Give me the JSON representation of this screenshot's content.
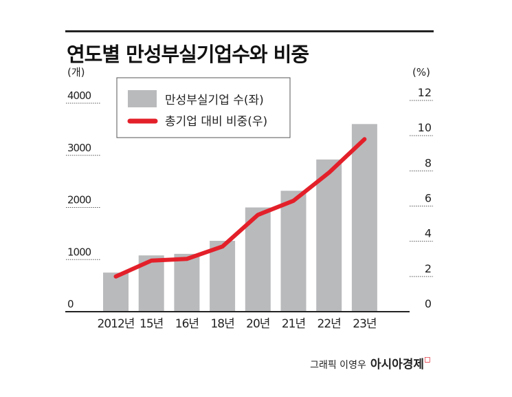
{
  "title": "연도별 만성부실기업수와 비중",
  "footer": {
    "credit": "그래픽 이영우",
    "brand": "아시아경제"
  },
  "colors": {
    "bar": "#b9babc",
    "line": "#e3202a",
    "text": "#222222"
  },
  "chart_data": {
    "type": "bar+line",
    "categories": [
      "2012년",
      "15년",
      "16년",
      "18년",
      "20년",
      "21년",
      "22년",
      "23년"
    ],
    "series": [
      {
        "name": "만성부실기업 수(좌)",
        "type": "bar",
        "axis": "left",
        "values": [
          750,
          1080,
          1110,
          1360,
          2000,
          2320,
          2920,
          3600
        ]
      },
      {
        "name": "총기업 대비 비중(우)",
        "type": "line",
        "axis": "right",
        "values": [
          2.0,
          2.9,
          3.0,
          3.7,
          5.5,
          6.3,
          7.9,
          9.8
        ]
      }
    ],
    "left_axis": {
      "unit": "(개)",
      "range": [
        0,
        4000
      ],
      "ticks": [
        "0",
        "1000",
        "2000",
        "3000",
        "4000"
      ]
    },
    "right_axis": {
      "unit": "(%)",
      "range": [
        0,
        12
      ],
      "ticks": [
        "0",
        "2",
        "4",
        "6",
        "8",
        "10",
        "12"
      ]
    },
    "legend_placement": "top-left",
    "grid": "dotted tick lines at axes"
  }
}
